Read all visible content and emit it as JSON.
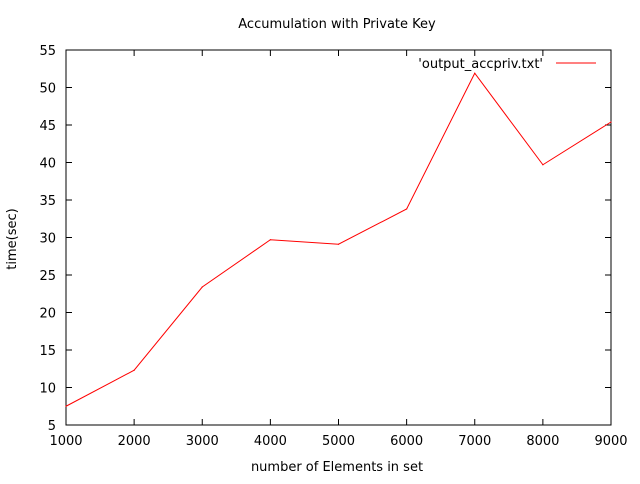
{
  "chart_data": {
    "type": "line",
    "title": "Accumulation with Private Key",
    "xlabel": "number of Elements in set",
    "ylabel": "time(sec)",
    "xlim": [
      1000,
      9000
    ],
    "ylim": [
      5,
      55
    ],
    "xticks": [
      1000,
      2000,
      3000,
      4000,
      5000,
      6000,
      7000,
      8000,
      9000
    ],
    "yticks": [
      5,
      10,
      15,
      20,
      25,
      30,
      35,
      40,
      45,
      50,
      55
    ],
    "grid": false,
    "legend_position": "top-right",
    "series": [
      {
        "name": "'output_accpriv.txt'",
        "color": "#ff0000",
        "x": [
          1000,
          2000,
          3000,
          4000,
          5000,
          6000,
          7000,
          8000,
          9000
        ],
        "y": [
          7.5,
          12.3,
          23.4,
          29.7,
          29.1,
          33.8,
          51.9,
          39.7,
          45.4
        ]
      }
    ]
  }
}
